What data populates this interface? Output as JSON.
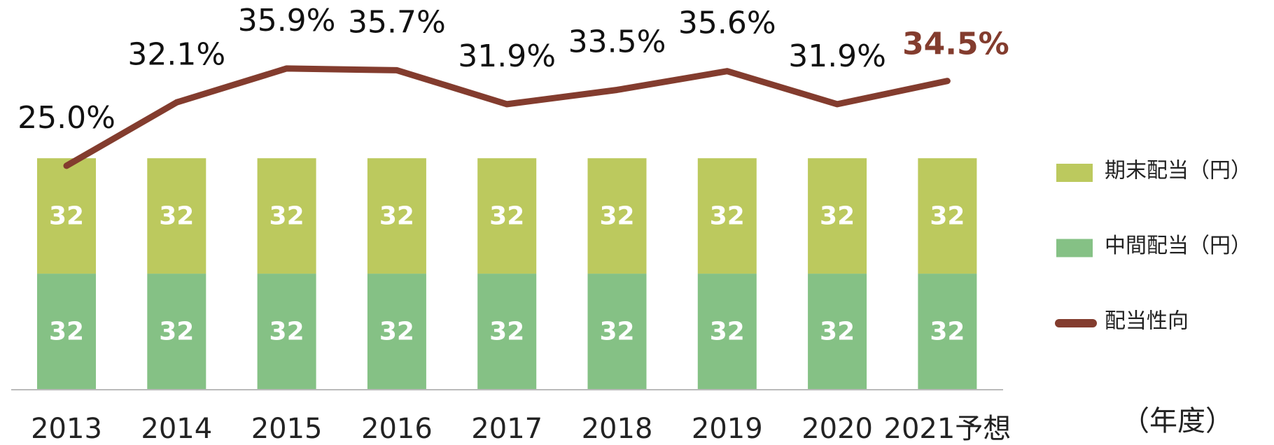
{
  "chart_data": {
    "type": "bar",
    "stacked": true,
    "categories": [
      "2013",
      "2014",
      "2015",
      "2016",
      "2017",
      "2018",
      "2019",
      "2020",
      "2021予想"
    ],
    "x_label": "（年度）",
    "ylim": [
      0,
      104
    ],
    "y2lim": [
      0,
      42
    ],
    "series": [
      {
        "name": "中間配当（円）",
        "color": "#85c185",
        "values": [
          32,
          32,
          32,
          32,
          32,
          32,
          32,
          32,
          32
        ]
      },
      {
        "name": "期末配当（円）",
        "color": "#bcc95e",
        "values": [
          32,
          32,
          32,
          32,
          32,
          32,
          32,
          32,
          32
        ]
      },
      {
        "name": "配当性向",
        "type": "line",
        "axis": "y2",
        "color": "#833c2e",
        "values": [
          25.0,
          32.1,
          35.9,
          35.7,
          31.9,
          33.5,
          35.6,
          31.9,
          34.5
        ],
        "value_labels": [
          "25.0%",
          "32.1%",
          "35.9%",
          "35.7%",
          "31.9%",
          "33.5%",
          "35.6%",
          "31.9%",
          "34.5%"
        ]
      }
    ]
  }
}
